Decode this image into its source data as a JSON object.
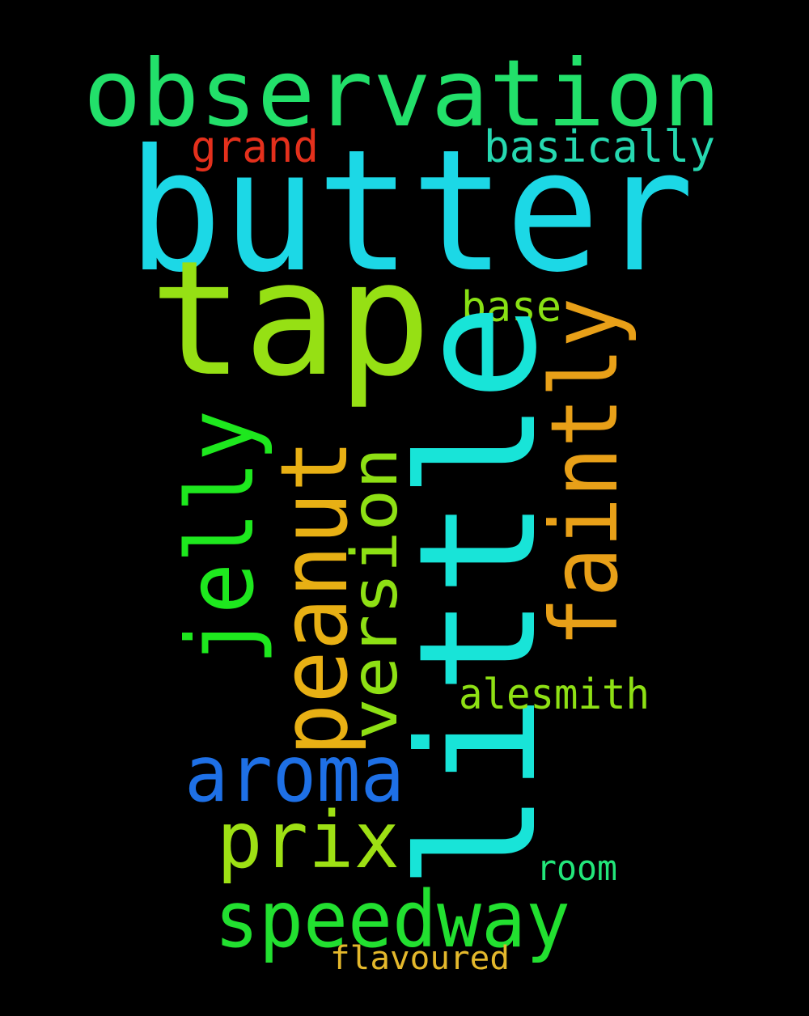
{
  "words": [
    {
      "text": "observation",
      "color": "#22E06A"
    },
    {
      "text": "butter",
      "color": "#1CD8E6"
    },
    {
      "text": "grand",
      "color": "#E4301C"
    },
    {
      "text": "basically",
      "color": "#26D8B0"
    },
    {
      "text": "tap",
      "color": "#96E014"
    },
    {
      "text": "base",
      "color": "#88E014"
    },
    {
      "text": "little",
      "color": "#18E4D8"
    },
    {
      "text": "faintly",
      "color": "#E8A018"
    },
    {
      "text": "jelly",
      "color": "#1EE81E"
    },
    {
      "text": "peanut",
      "color": "#E8B014"
    },
    {
      "text": "version",
      "color": "#8EE014"
    },
    {
      "text": "alesmith",
      "color": "#8EE014"
    },
    {
      "text": "aroma",
      "color": "#1E70E6"
    },
    {
      "text": "prix",
      "color": "#9EE014"
    },
    {
      "text": "room",
      "color": "#22E67A"
    },
    {
      "text": "speedway",
      "color": "#22E030"
    },
    {
      "text": "flavoured",
      "color": "#E4B82C"
    }
  ]
}
